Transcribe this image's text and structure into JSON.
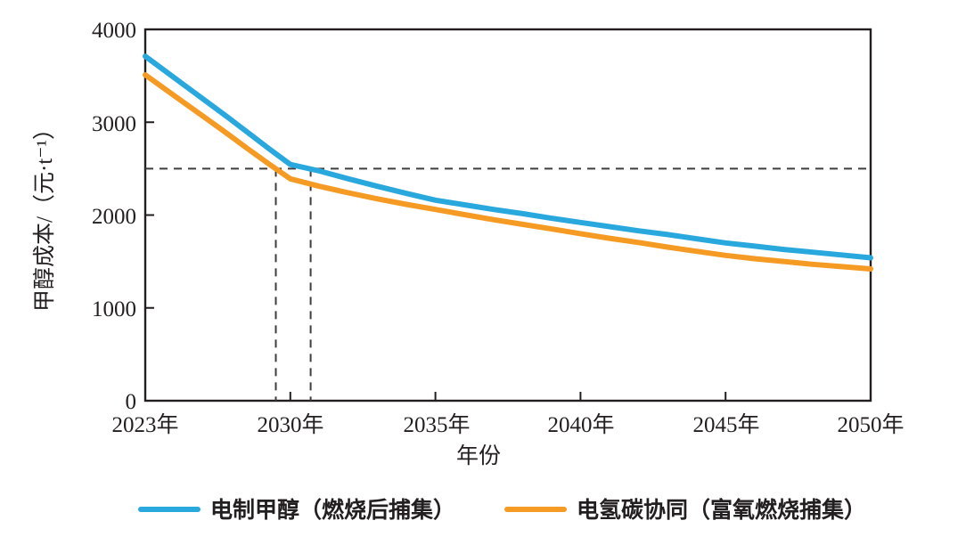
{
  "figure": {
    "background": "#ffffff",
    "frame_color": "#231f20",
    "dashed_line_color": "#3d3d3d"
  },
  "axes": {
    "x_label": "年份",
    "y_label": "甲醇成本/（元·t⁻¹）",
    "x_tick_years": [
      2023,
      2030,
      2035,
      2040,
      2045,
      2050
    ],
    "x_tick_labels": [
      "2023年",
      "2030年",
      "2035年",
      "2040年",
      "2045年",
      "2050年"
    ],
    "y_ticks": [
      0,
      1000,
      2000,
      3000,
      4000
    ],
    "y_tick_labels": [
      "0",
      "1000",
      "2000",
      "3000",
      "4000"
    ],
    "ylim": [
      0,
      4000
    ]
  },
  "chart_data": {
    "type": "line",
    "title": "",
    "xlabel": "年份",
    "ylabel": "甲醇成本/（元·t⁻¹）",
    "ylim": [
      0,
      4000
    ],
    "x_axis_note": "tick labels 2023/2030/2035/2040/2045/2050 are evenly spaced in pixels (2023-2030 interval compressed)",
    "x": [
      2023,
      2024,
      2025,
      2026,
      2027,
      2028,
      2029,
      2030,
      2031,
      2032,
      2033,
      2034,
      2035,
      2036,
      2037,
      2038,
      2039,
      2040,
      2041,
      2042,
      2043,
      2044,
      2045,
      2046,
      2047,
      2048,
      2049,
      2050
    ],
    "series": [
      {
        "name": "电制甲醇（燃烧后捕集）",
        "color": "#29a8dd",
        "values": [
          3710,
          3545,
          3380,
          3215,
          3050,
          2880,
          2710,
          2545,
          2475,
          2390,
          2310,
          2233,
          2160,
          2110,
          2060,
          2015,
          1965,
          1920,
          1875,
          1830,
          1790,
          1745,
          1700,
          1665,
          1630,
          1600,
          1570,
          1540
        ]
      },
      {
        "name": "电氢碳协同（富氧燃烧捕集）",
        "color": "#f59a23",
        "values": [
          3510,
          3350,
          3190,
          3030,
          2870,
          2705,
          2545,
          2390,
          2310,
          2240,
          2175,
          2115,
          2060,
          2005,
          1950,
          1900,
          1850,
          1800,
          1750,
          1705,
          1655,
          1610,
          1565,
          1530,
          1500,
          1470,
          1445,
          1420
        ]
      }
    ],
    "annotations": {
      "threshold_value": 2500,
      "orange_crosses_threshold_year": 2029.3,
      "blue_crosses_threshold_year": 2030.7
    },
    "legend_position": "bottom"
  },
  "legend": {
    "items": [
      {
        "label": "电制甲醇（燃烧后捕集）",
        "color": "#29a8dd"
      },
      {
        "label": "电氢碳协同（富氧燃烧捕集）",
        "color": "#f59a23"
      }
    ]
  }
}
